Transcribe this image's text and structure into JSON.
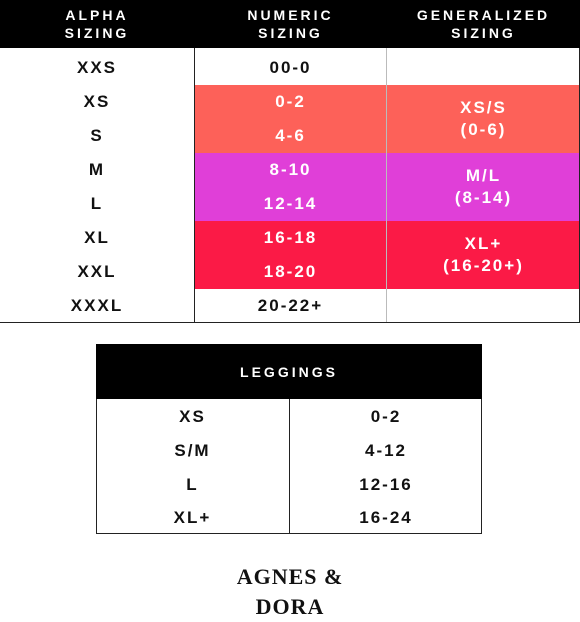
{
  "main_table": {
    "headers": {
      "alpha": "ALPHA\nSIZING",
      "numeric": "NUMERIC\nSIZING",
      "generalized": "GENERALIZED\nSIZING"
    },
    "rows": [
      {
        "alpha": "XXS",
        "numeric": "00-0"
      },
      {
        "alpha": "XS",
        "numeric": "0-2"
      },
      {
        "alpha": "S",
        "numeric": "4-6"
      },
      {
        "alpha": "M",
        "numeric": "8-10"
      },
      {
        "alpha": "L",
        "numeric": "12-14"
      },
      {
        "alpha": "XL",
        "numeric": "16-18"
      },
      {
        "alpha": "XXL",
        "numeric": "18-20"
      },
      {
        "alpha": "XXXL",
        "numeric": "20-22+"
      }
    ],
    "groups": [
      {
        "label": "XS/S\n(0-6)"
      },
      {
        "label": "M/L\n(8-14)"
      },
      {
        "label": "XL+\n(16-20+)"
      }
    ],
    "colors": {
      "header_bg": "#000000",
      "group_small": "#fd6159",
      "group_medium": "#e03fd8",
      "group_large": "#fb1a46"
    }
  },
  "leggings_table": {
    "header": "LEGGINGS",
    "rows": [
      {
        "alpha": "XS",
        "numeric": "0-2"
      },
      {
        "alpha": "S/M",
        "numeric": "4-12"
      },
      {
        "alpha": "L",
        "numeric": "12-16"
      },
      {
        "alpha": "XL+",
        "numeric": "16-24"
      }
    ]
  },
  "brand": {
    "logo_text": "AGNES & DORA"
  }
}
